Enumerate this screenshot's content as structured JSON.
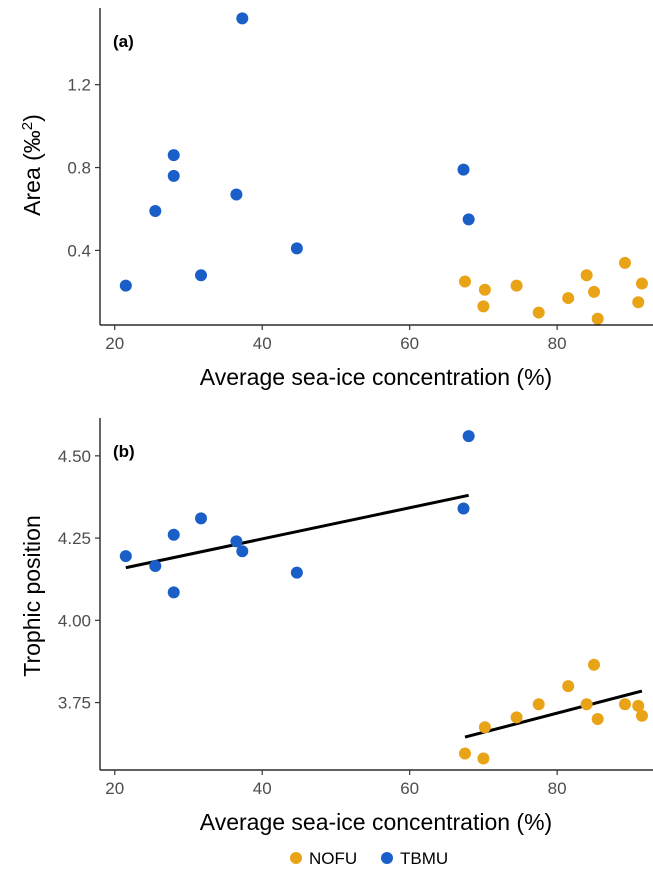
{
  "chart_data": [
    {
      "type": "scatter",
      "panel_label": "(a)",
      "xlabel": "Average sea-ice concentration (%)",
      "ylabel": "Area (‰",
      "ylabel_superscript": "2",
      "ylabel_close": ")",
      "xlim": [
        18,
        93
      ],
      "ylim": [
        0.04,
        1.57
      ],
      "xticks": [
        20,
        40,
        60,
        80
      ],
      "yticks": [
        0.4,
        0.8,
        1.2
      ],
      "xtick_labels": [
        "20",
        "40",
        "60",
        "80"
      ],
      "ytick_labels": [
        "0.4",
        "0.8",
        "1.2"
      ],
      "grid": false,
      "series": [
        {
          "name": "NOFU",
          "color": "#E8A317",
          "points": [
            [
              67.5,
              0.25
            ],
            [
              70.2,
              0.21
            ],
            [
              70.0,
              0.13
            ],
            [
              74.5,
              0.23
            ],
            [
              77.5,
              0.1
            ],
            [
              81.5,
              0.17
            ],
            [
              84.0,
              0.28
            ],
            [
              85.0,
              0.2
            ],
            [
              85.5,
              0.07
            ],
            [
              89.2,
              0.34
            ],
            [
              91.0,
              0.15
            ],
            [
              91.5,
              0.24
            ]
          ]
        },
        {
          "name": "TBMU",
          "color": "#1A5FC8",
          "points": [
            [
              21.5,
              0.23
            ],
            [
              25.5,
              0.59
            ],
            [
              28.0,
              0.86
            ],
            [
              28.0,
              0.76
            ],
            [
              31.7,
              0.28
            ],
            [
              36.5,
              0.67
            ],
            [
              37.3,
              1.52
            ],
            [
              44.7,
              0.41
            ],
            [
              67.3,
              0.79
            ],
            [
              68.0,
              0.55
            ]
          ]
        }
      ]
    },
    {
      "type": "scatter",
      "panel_label": "(b)",
      "xlabel": "Average sea-ice concentration (%)",
      "ylabel": "Trophic position",
      "xlim": [
        18,
        93
      ],
      "ylim": [
        3.545,
        4.615
      ],
      "xticks": [
        20,
        40,
        60,
        80
      ],
      "yticks": [
        3.75,
        4.0,
        4.25,
        4.5
      ],
      "xtick_labels": [
        "20",
        "40",
        "60",
        "80"
      ],
      "ytick_labels": [
        "3.75",
        "4.00",
        "4.25",
        "4.50"
      ],
      "grid": false,
      "series": [
        {
          "name": "NOFU",
          "color": "#E8A317",
          "points": [
            [
              67.5,
              3.595
            ],
            [
              70.2,
              3.675
            ],
            [
              70.0,
              3.58
            ],
            [
              74.5,
              3.705
            ],
            [
              77.5,
              3.745
            ],
            [
              81.5,
              3.8
            ],
            [
              84.0,
              3.745
            ],
            [
              85.0,
              3.865
            ],
            [
              85.5,
              3.7
            ],
            [
              89.2,
              3.745
            ],
            [
              91.0,
              3.74
            ],
            [
              91.5,
              3.71
            ]
          ],
          "fit": [
            [
              67.5,
              3.645
            ],
            [
              91.5,
              3.785
            ]
          ]
        },
        {
          "name": "TBMU",
          "color": "#1A5FC8",
          "points": [
            [
              21.5,
              4.195
            ],
            [
              25.5,
              4.165
            ],
            [
              28.0,
              4.26
            ],
            [
              28.0,
              4.085
            ],
            [
              31.7,
              4.31
            ],
            [
              36.5,
              4.24
            ],
            [
              37.3,
              4.21
            ],
            [
              44.7,
              4.145
            ],
            [
              67.3,
              4.34
            ],
            [
              68.0,
              4.56
            ]
          ],
          "fit": [
            [
              21.5,
              4.16
            ],
            [
              68.0,
              4.38
            ]
          ]
        }
      ]
    }
  ],
  "legend": {
    "position": "bottom",
    "items": [
      {
        "label": "NOFU",
        "color": "#E8A317"
      },
      {
        "label": "TBMU",
        "color": "#1A5FC8"
      }
    ]
  }
}
